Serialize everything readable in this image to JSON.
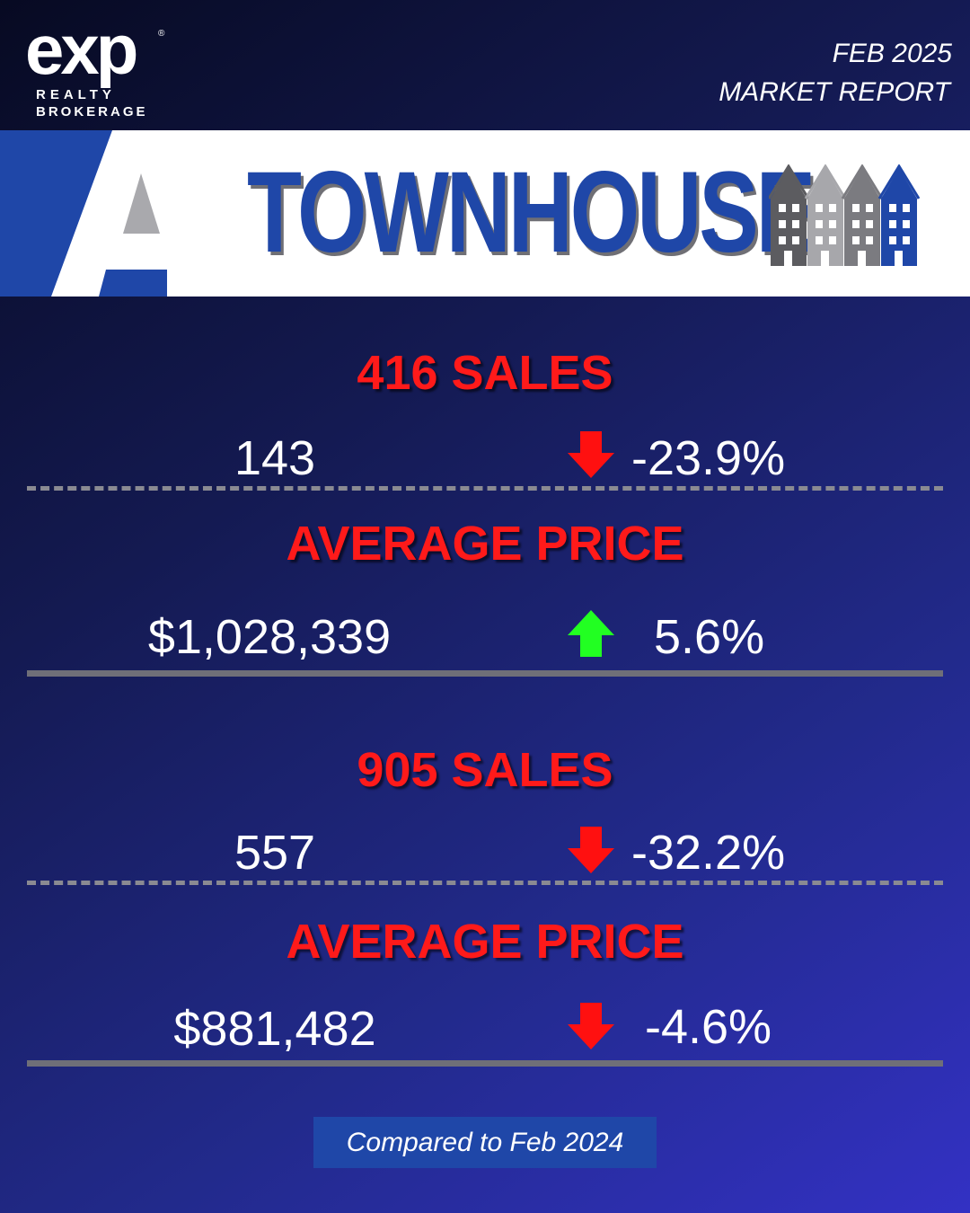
{
  "brand": {
    "logo_main": "exp",
    "logo_line1": "REALTY",
    "logo_line2": "BROKERAGE",
    "logo_mark": "®"
  },
  "report": {
    "date": "FEB 2025",
    "title": "MARKET REPORT"
  },
  "banner": {
    "title": "TOWNHOUSE",
    "title_color": "#1f47a8",
    "icon": "townhouses-icon"
  },
  "colors": {
    "headline": "#ff1a1a",
    "up": "#22ff22",
    "down": "#ff1010",
    "accent": "#1f47a8"
  },
  "regions": [
    {
      "sales_heading": "416 SALES",
      "sales_value": "143",
      "sales_direction": "down",
      "sales_change": "-23.9%",
      "price_heading": "AVERAGE PRICE",
      "price_value": "$1,028,339",
      "price_direction": "up",
      "price_change": "5.6%"
    },
    {
      "sales_heading": "905 SALES",
      "sales_value": "557",
      "sales_direction": "down",
      "sales_change": "-32.2%",
      "price_heading": "AVERAGE PRICE",
      "price_value": "$881,482",
      "price_direction": "down",
      "price_change": "-4.6%"
    }
  ],
  "footer": {
    "note": "Compared to Feb 2024"
  }
}
